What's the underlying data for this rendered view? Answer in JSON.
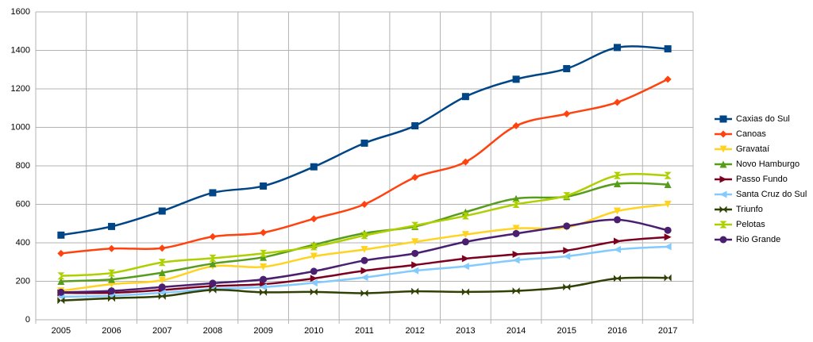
{
  "chart_data": {
    "type": "line",
    "smooth": true,
    "grid": true,
    "legend": "right",
    "categories": [
      "2005",
      "2006",
      "2007",
      "2008",
      "2009",
      "2010",
      "2011",
      "2012",
      "2013",
      "2014",
      "2015",
      "2016",
      "2017"
    ],
    "ylim": [
      0,
      1600
    ],
    "yticks": [
      0,
      200,
      400,
      600,
      800,
      1000,
      1200,
      1400,
      1600
    ],
    "series": [
      {
        "name": "Caxias do Sul",
        "color": "#004586",
        "marker": "square",
        "values": [
          440,
          485,
          565,
          660,
          695,
          795,
          918,
          1008,
          1160,
          1250,
          1305,
          1415,
          1408
        ]
      },
      {
        "name": "Canoas",
        "color": "#ff420e",
        "marker": "diamond",
        "values": [
          345,
          370,
          372,
          432,
          453,
          525,
          600,
          740,
          820,
          1008,
          1070,
          1130,
          1250
        ]
      },
      {
        "name": "Gravataí",
        "color": "#ffd320",
        "marker": "triangle-down",
        "values": [
          150,
          185,
          205,
          278,
          275,
          330,
          365,
          405,
          443,
          475,
          480,
          565,
          600
        ]
      },
      {
        "name": "Novo Hamburgo",
        "color": "#579d1c",
        "marker": "triangle-up",
        "values": [
          200,
          210,
          245,
          292,
          325,
          390,
          450,
          485,
          560,
          630,
          640,
          707,
          703
        ]
      },
      {
        "name": "Passo Fundo",
        "color": "#7e0021",
        "marker": "triangle-right",
        "values": [
          140,
          140,
          155,
          175,
          185,
          215,
          255,
          285,
          318,
          340,
          360,
          408,
          430
        ]
      },
      {
        "name": "Santa Cruz do Sul",
        "color": "#83caff",
        "marker": "triangle-left",
        "values": [
          120,
          125,
          140,
          160,
          170,
          192,
          220,
          255,
          278,
          310,
          330,
          365,
          380
        ]
      },
      {
        "name": "Triunfo",
        "color": "#314004",
        "marker": "bowtie",
        "values": [
          100,
          112,
          122,
          155,
          143,
          145,
          138,
          148,
          145,
          150,
          170,
          215,
          218
        ]
      },
      {
        "name": "Pelotas",
        "color": "#aecf00",
        "marker": "hourglass",
        "values": [
          228,
          243,
          298,
          320,
          345,
          380,
          438,
          490,
          540,
          600,
          645,
          750,
          750
        ]
      },
      {
        "name": "Rio Grande",
        "color": "#4b1f6f",
        "marker": "circle",
        "values": [
          143,
          150,
          170,
          190,
          210,
          252,
          308,
          345,
          405,
          448,
          487,
          520,
          465
        ]
      }
    ]
  }
}
